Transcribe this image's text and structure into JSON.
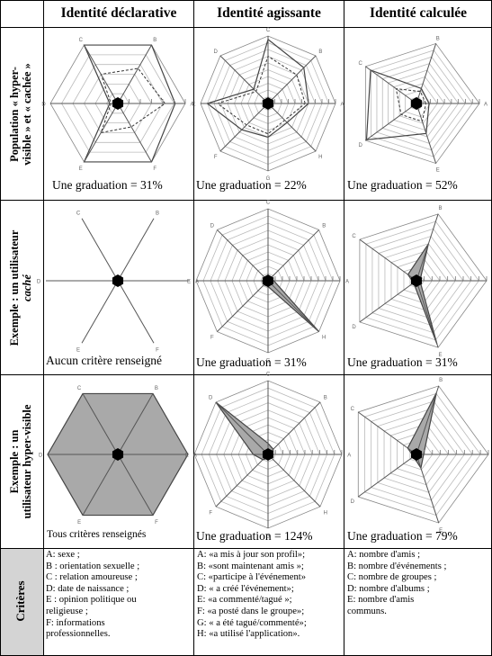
{
  "columns": [
    "Identité déclarative",
    "Identité agissante",
    "Identité calculée"
  ],
  "rows": [
    {
      "label_line1": "Population « hyper-",
      "label_line2": "visible » et « cachée »"
    },
    {
      "label_line1": "Exemple : un utilisateur",
      "label_line2": "caché"
    },
    {
      "label_line1": "Exemple : un",
      "label_line2": "utilisateur hyper-visible"
    }
  ],
  "criteria_label": "Critères",
  "captions": [
    [
      "Une graduation = 31%",
      "Une graduation = 22%",
      "Une graduation = 52%"
    ],
    [
      "Aucun critère renseigné",
      "Une graduation = 31%",
      "Une graduation = 31%"
    ],
    [
      "Tous critères renseignés",
      "Une graduation = 124%",
      "Une graduation = 79%"
    ]
  ],
  "axis_labels": {
    "declarative": [
      "A",
      "B",
      "C",
      "D",
      "E",
      "F"
    ],
    "agissante": [
      "A",
      "B",
      "C",
      "D",
      "E",
      "F",
      "G",
      "H"
    ],
    "calculee": [
      "A",
      "B",
      "C",
      "D",
      "E"
    ]
  },
  "criteria": {
    "declarative": [
      "A: sexe ;",
      "B : orientation sexuelle ;",
      "C : relation amoureuse ;",
      "D: date de naissance ;",
      "E : opinion politique ou",
      "religieuse ;",
      "F: informations",
      "professionnelles."
    ],
    "agissante": [
      "A: «a mis à jour son profil»;",
      "B: «sont maintenant amis »;",
      "C: «participe à l'événement»",
      "D: « a créé l'événement»;",
      "E: «a commenté/tagué »;",
      "F: «a posté dans le groupe»;",
      "G: « a été tagué/commenté»;",
      "H: «a utilisé l'application»."
    ],
    "calculee": [
      "A: nombre d'amis ;",
      "B: nombre d'événements ;",
      "C: nombre de groupes ;",
      "D: nombre d'albums ;",
      "E: nombre d'amis",
      "communs."
    ]
  },
  "chart_data": [
    {
      "type": "radar",
      "panel": "population-declarative",
      "axes": [
        "A",
        "B",
        "C",
        "D",
        "E",
        "F"
      ],
      "rings": 6,
      "series": [
        {
          "values": [
            0.85,
            1.0,
            1.0,
            0.12,
            1.0,
            1.0
          ]
        },
        {
          "values": [
            0.7,
            0.6,
            0.5,
            0.1,
            0.5,
            0.4
          ],
          "dashed": true
        }
      ]
    },
    {
      "type": "radar",
      "panel": "population-agissante",
      "axes": [
        "A",
        "B",
        "C",
        "D",
        "E",
        "F",
        "G",
        "H"
      ],
      "rings": 10,
      "series": [
        {
          "values": [
            0.6,
            0.75,
            0.95,
            0.3,
            0.9,
            0.55,
            0.5,
            0.4
          ]
        },
        {
          "values": [
            0.55,
            0.6,
            0.7,
            0.25,
            0.75,
            0.45,
            0.45,
            0.35
          ],
          "dashed": true
        }
      ]
    },
    {
      "type": "radar",
      "panel": "population-calculee",
      "axes": [
        "A",
        "B",
        "C",
        "D",
        "E"
      ],
      "rings": 9,
      "series": [
        {
          "values": [
            0.2,
            0.25,
            0.9,
            0.98,
            0.5
          ]
        },
        {
          "values": [
            0.15,
            0.2,
            0.4,
            0.3,
            0.3
          ],
          "dashed": true
        }
      ]
    },
    {
      "type": "radar",
      "panel": "cache-declarative",
      "axes": [
        "A",
        "B",
        "C",
        "D",
        "E",
        "F"
      ],
      "rings": 0,
      "series": [
        {
          "values": [
            0,
            0,
            0,
            0,
            0,
            0
          ]
        }
      ]
    },
    {
      "type": "radar",
      "panel": "cache-agissante",
      "axes": [
        "A",
        "B",
        "C",
        "D",
        "E",
        "F",
        "G",
        "H"
      ],
      "rings": 10,
      "series": [
        {
          "values": [
            0.08,
            0.05,
            0.05,
            0.05,
            0.08,
            0.08,
            0.08,
            1.0
          ],
          "fill": true
        }
      ]
    },
    {
      "type": "radar",
      "panel": "cache-calculee",
      "axes": [
        "A",
        "B",
        "C",
        "D",
        "E"
      ],
      "rings": 9,
      "series": [
        {
          "values": [
            0.05,
            0.55,
            0.15,
            0.05,
            0.95
          ],
          "fill": true
        }
      ]
    },
    {
      "type": "radar",
      "panel": "hypervisible-declarative",
      "axes": [
        "A",
        "B",
        "C",
        "D",
        "E",
        "F"
      ],
      "rings": 0,
      "series": [
        {
          "values": [
            1.0,
            1.0,
            1.0,
            1.0,
            1.0,
            1.0
          ],
          "fill": true
        }
      ]
    },
    {
      "type": "radar",
      "panel": "hypervisible-agissante",
      "axes": [
        "A",
        "B",
        "C",
        "D",
        "E",
        "F",
        "G",
        "H"
      ],
      "rings": 10,
      "series": [
        {
          "values": [
            0.05,
            0.1,
            0.15,
            1.0,
            0.2,
            0.1,
            0.05,
            0.05
          ],
          "fill": true
        }
      ]
    },
    {
      "type": "radar",
      "panel": "hypervisible-calculee",
      "axes": [
        "A",
        "B",
        "C",
        "D",
        "E"
      ],
      "rings": 9,
      "series": [
        {
          "values": [
            0.1,
            0.9,
            0.15,
            0.05,
            0.2
          ],
          "fill": true
        }
      ]
    }
  ]
}
